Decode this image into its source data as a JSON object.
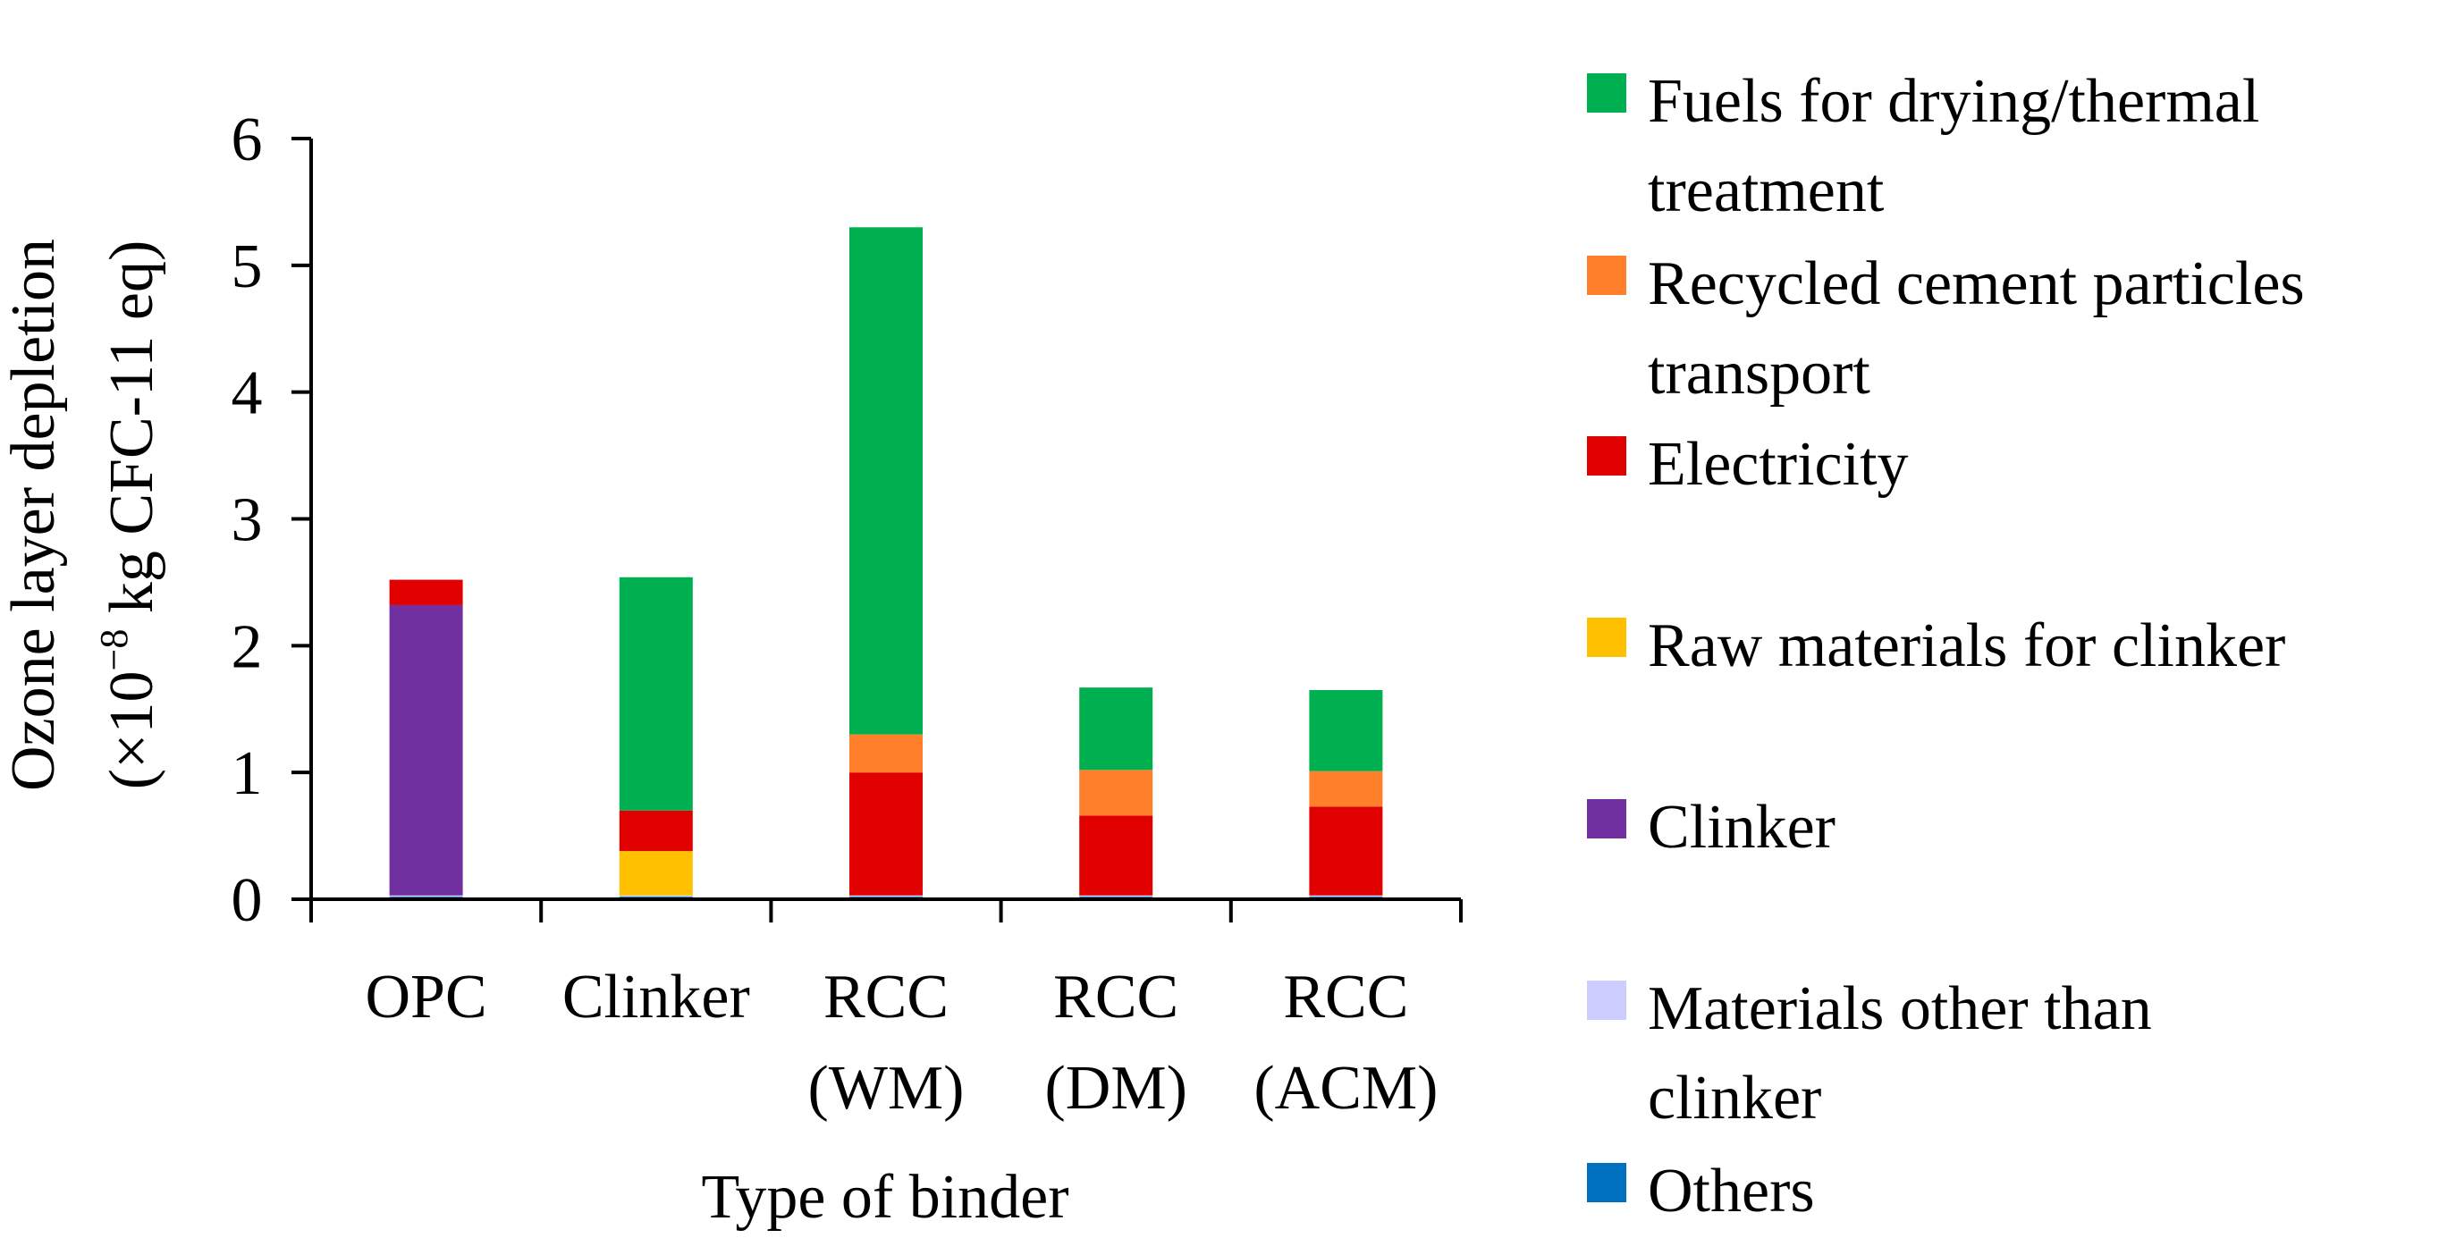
{
  "chart_data": {
    "type": "bar",
    "stacked": true,
    "xlabel": "Type of binder",
    "ylabel_line1": "Ozone layer depletion",
    "ylabel_line2_prefix": "(×10",
    "ylabel_line2_exp": "−8",
    "ylabel_line2_suffix": " kg CFC-11 eq)",
    "ylim": [
      0,
      6
    ],
    "yticks": [
      "0",
      "1",
      "2",
      "3",
      "4",
      "5",
      "6"
    ],
    "categories": [
      {
        "line1": "OPC",
        "line2": ""
      },
      {
        "line1": "Clinker",
        "line2": ""
      },
      {
        "line1": "RCC",
        "line2": "(WM)"
      },
      {
        "line1": "RCC",
        "line2": "(DM)"
      },
      {
        "line1": "RCC",
        "line2": "(ACM)"
      }
    ],
    "series": [
      {
        "name": "Others",
        "color": "#0070C0",
        "values": [
          0.02,
          0.02,
          0.02,
          0.02,
          0.02
        ]
      },
      {
        "name": "Materials other than clinker",
        "color": "#CCCCFF",
        "values": [
          0.01,
          0.01,
          0.01,
          0.01,
          0.01
        ]
      },
      {
        "name": "Clinker",
        "color": "#7030A0",
        "values": [
          2.29,
          0,
          0,
          0,
          0
        ]
      },
      {
        "name": "Raw materials for clinker",
        "color": "#FFC000",
        "values": [
          0,
          0.35,
          0,
          0,
          0
        ]
      },
      {
        "name": "Electricity",
        "color": "#E00000",
        "values": [
          0.2,
          0.32,
          0.97,
          0.63,
          0.7
        ]
      },
      {
        "name": "Recycled cement particles transport",
        "color": "#FF7F2A",
        "values": [
          0,
          0,
          0.3,
          0.36,
          0.28
        ]
      },
      {
        "name": "Fuels for drying/thermal treatment",
        "color": "#00B050",
        "values": [
          0,
          1.84,
          4.0,
          0.65,
          0.64
        ]
      }
    ]
  },
  "legend": [
    {
      "line1": "Fuels for drying/thermal",
      "line2": "treatment",
      "color": "#00B050",
      "icon": "swatch-square"
    },
    {
      "line1": "Recycled cement particles",
      "line2": "transport",
      "color": "#FF7F2A",
      "icon": "swatch-square"
    },
    {
      "line1": "Electricity",
      "line2": "",
      "color": "#E00000",
      "icon": "swatch-square"
    },
    {
      "line1": "Raw materials for clinker",
      "line2": "",
      "color": "#FFC000",
      "icon": "swatch-square"
    },
    {
      "line1": "Clinker",
      "line2": "",
      "color": "#7030A0",
      "icon": "swatch-square"
    },
    {
      "line1": "Materials other than",
      "line2": "clinker",
      "color": "#CCCCFF",
      "icon": "swatch-square"
    },
    {
      "line1": "Others",
      "line2": "",
      "color": "#0070C0",
      "icon": "swatch-square"
    }
  ]
}
